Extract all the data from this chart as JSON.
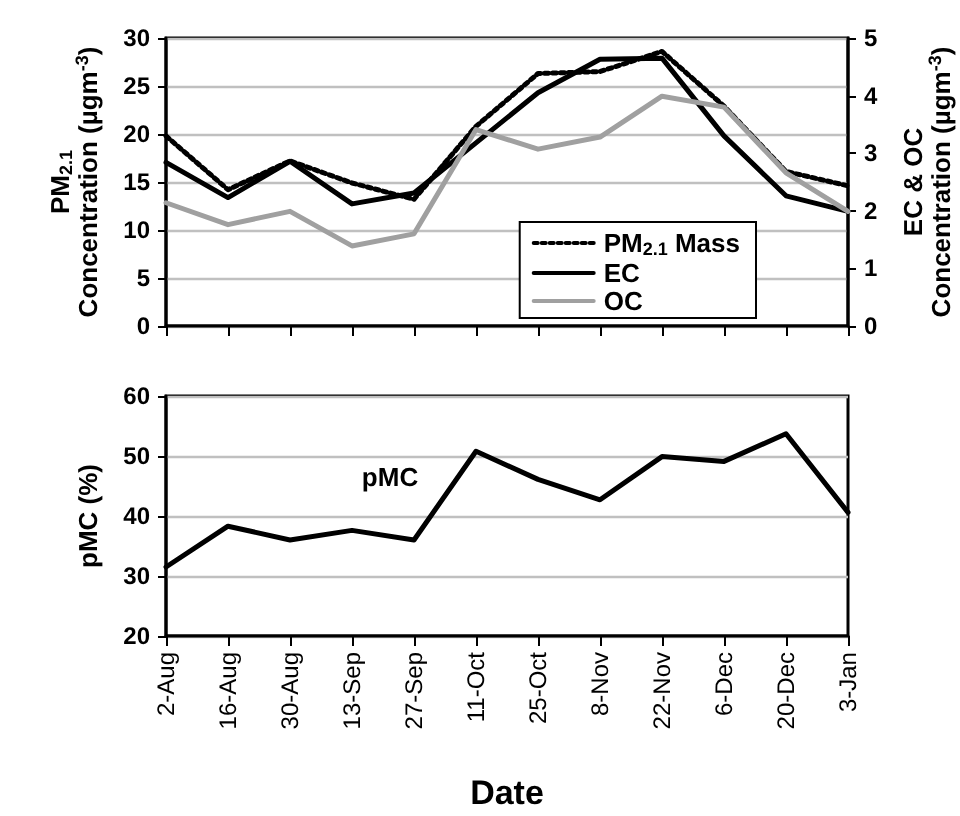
{
  "chart_data": [
    {
      "type": "line",
      "ylabel": "PM$_{2.1}$\nConcentration (µgm$^{-3}$)",
      "y2label": "EC & OC\nConcentration (µgm$^{-3}$)",
      "categories": [
        null,
        null,
        null,
        null,
        null,
        null,
        null,
        null,
        null,
        null,
        null,
        null
      ],
      "ylim": [
        0,
        30
      ],
      "yticks": [
        0,
        5,
        10,
        15,
        20,
        25,
        30
      ],
      "y2lim": [
        0,
        5
      ],
      "y2ticks": [
        0,
        1,
        2,
        3,
        4,
        5
      ],
      "series": [
        {
          "name": "PM$_{2.1}$ Mass",
          "color": "#000000",
          "line_style": "dotted",
          "values": [
            19.8,
            14.2,
            17.2,
            14.9,
            13.2,
            20.8,
            26.3,
            26.5,
            28.6,
            22.9,
            16.1,
            14.6
          ]
        },
        {
          "name": "EC",
          "color": "#000000",
          "line_style": "solid",
          "axis": "y2",
          "values": [
            2.84,
            2.23,
            2.86,
            2.12,
            2.31,
            3.18,
            4.05,
            4.63,
            4.65,
            3.3,
            2.26,
            1.99
          ]
        },
        {
          "name": "OC",
          "color": "#a0a0a0",
          "line_style": "solid",
          "axis": "y2",
          "values": [
            2.14,
            1.76,
            1.99,
            1.39,
            1.6,
            3.41,
            3.07,
            3.28,
            3.99,
            3.8,
            2.66,
            1.99
          ]
        }
      ],
      "grid": "y",
      "legend": "bottom right",
      "marker": "none"
    },
    {
      "type": "line",
      "ylabel": "pMC (%)",
      "xlabel": "Date",
      "categories": [
        "2-Aug",
        "16-Aug",
        "30-Aug",
        "13-Sep",
        "27-Sep",
        "11-Oct",
        "25-Oct",
        "8-Nov",
        "22-Nov",
        "6-Dec",
        "20-Dec",
        "3-Jan"
      ],
      "ylim": [
        20,
        60
      ],
      "yticks": [
        20,
        30,
        40,
        50,
        60
      ],
      "series": [
        {
          "name": "pMC",
          "color": "#000000",
          "line_style": "solid",
          "values": [
            31.5,
            38.3,
            36,
            37.6,
            36,
            50.8,
            46.1,
            42.7,
            49.9,
            49.1,
            53.7,
            40.6
          ]
        }
      ],
      "grid": "y",
      "legend": false,
      "marker": "none"
    }
  ]
}
